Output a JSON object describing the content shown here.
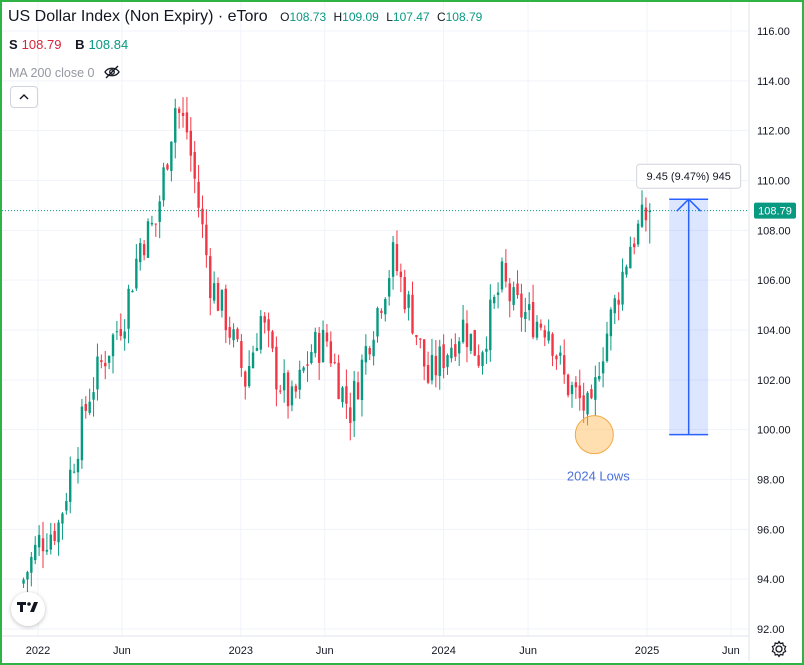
{
  "header": {
    "title": "US Dollar Index (Non Expiry) · eToro",
    "open_label": "O",
    "open": "108.73",
    "high_label": "H",
    "high": "109.09",
    "low_label": "L",
    "low": "107.47",
    "close_label": "C",
    "close": "108.79"
  },
  "quote": {
    "sell_label": "S",
    "sell": "108.79",
    "buy_label": "B",
    "buy": "108.84"
  },
  "indicator": {
    "label": "MA 200 close 0",
    "icon": "eye-off-icon"
  },
  "colors": {
    "up": "#089981",
    "down": "#f23645",
    "accent": "#2962ff",
    "frame": "#2fb344"
  },
  "chart_data": {
    "type": "candlestick",
    "interval": "weekly",
    "current_price": 108.79,
    "current_price_label": "108.79",
    "ylim": [
      92,
      116
    ],
    "y_ticks": [
      "92.00",
      "94.00",
      "96.00",
      "98.00",
      "100.00",
      "102.00",
      "104.00",
      "106.00",
      "108.00",
      "110.00",
      "112.00",
      "114.00",
      "116.00"
    ],
    "x_ticks": [
      "2022",
      "Jun",
      "2023",
      "Jun",
      "2024",
      "Jun",
      "2025",
      "Jun"
    ],
    "x_tick_dates": [
      "2022-01-01",
      "2022-06-01",
      "2023-01-01",
      "2023-06-01",
      "2024-01-01",
      "2024-06-01",
      "2025-01-01",
      "2025-06-01"
    ],
    "series": [
      {
        "date": [
          "2021-12-06",
          "2022-01-03",
          "2022-02-07",
          "2022-03-07",
          "2022-04-04",
          "2022-05-02",
          "2022-06-06",
          "2022-07-04",
          "2022-08-01",
          "2022-09-05",
          "2022-09-26",
          "2022-11-07",
          "2022-12-05",
          "2023-01-09",
          "2023-02-06",
          "2023-03-06",
          "2023-04-03",
          "2023-05-08",
          "2023-06-05",
          "2023-07-03",
          "2023-07-17",
          "2023-08-21",
          "2023-10-02",
          "2023-11-06",
          "2023-12-04",
          "2024-01-01",
          "2024-02-05",
          "2024-03-04",
          "2024-04-15",
          "2024-05-06",
          "2024-06-03",
          "2024-07-08",
          "2024-08-05",
          "2024-09-23",
          "2024-10-07",
          "2024-11-04",
          "2024-12-02",
          "2025-01-06"
        ],
        "close": [
          94.0,
          95.5,
          96.2,
          98.9,
          101.5,
          103.0,
          104.7,
          107.5,
          108.3,
          113.0,
          112.0,
          106.0,
          104.5,
          102.0,
          104.5,
          102.2,
          101.0,
          103.2,
          103.6,
          101.5,
          100.8,
          103.8,
          106.9,
          104.5,
          102.0,
          103.0,
          104.2,
          103.0,
          106.0,
          105.0,
          104.5,
          104.2,
          102.0,
          100.5,
          102.8,
          105.0,
          107.5,
          108.79
        ]
      }
    ],
    "annotations": [
      {
        "type": "label",
        "text": "2024 Lows",
        "date": "2024-09-30",
        "value": 100.0
      },
      {
        "type": "measure",
        "text": "9.45 (9.47%) 945",
        "from": 99.8,
        "to": 109.25,
        "date_from": "2025-02-10",
        "date_to": "2025-04-21"
      }
    ]
  }
}
